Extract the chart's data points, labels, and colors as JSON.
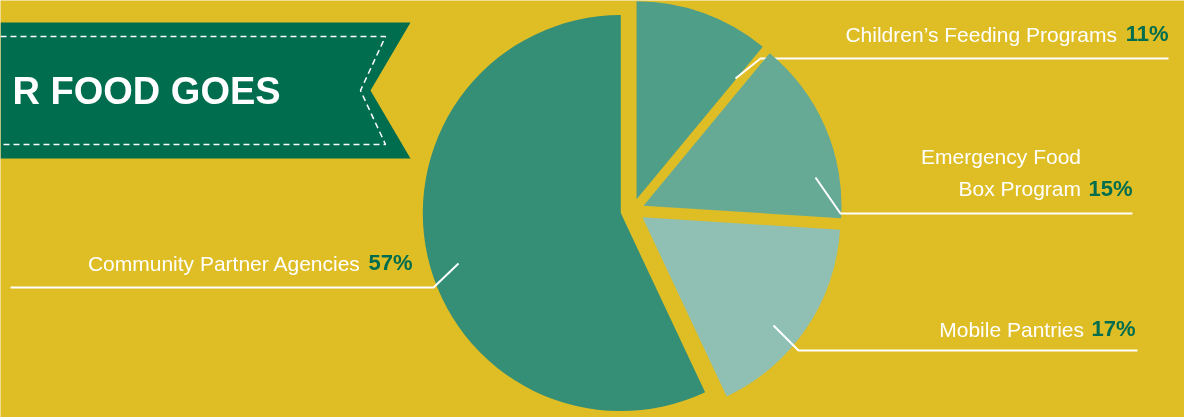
{
  "chart_data": {
    "type": "pie",
    "title": "R FOOD GOES",
    "categories": [
      "Children’s Feeding Programs",
      "Emergency Food\nBox Program",
      "Mobile Pantries",
      "Community Partner Agencies"
    ],
    "values": [
      11,
      15,
      17,
      57
    ],
    "value_labels": [
      "11%",
      "15%",
      "17%",
      "57%"
    ],
    "colors": [
      "#4e9e88",
      "#66aa96",
      "#8fc0b3",
      "#348f76"
    ]
  }
}
